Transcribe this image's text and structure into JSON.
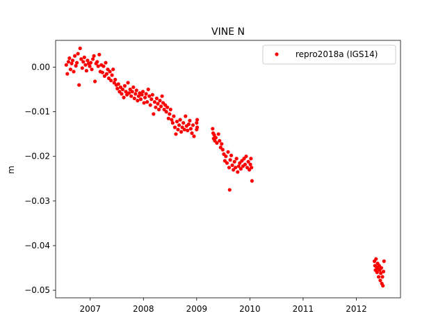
{
  "chart_data": {
    "type": "scatter",
    "title": "VINE N",
    "xlabel": "",
    "ylabel": "m",
    "xlim": [
      2006.35,
      2012.83
    ],
    "ylim": [
      -0.0517,
      0.006
    ],
    "x_ticks": [
      2007,
      2008,
      2009,
      2010,
      2011,
      2012
    ],
    "x_tick_labels": [
      "2007",
      "2008",
      "2009",
      "2010",
      "2011",
      "2012"
    ],
    "y_ticks": [
      0.0,
      -0.01,
      -0.02,
      -0.03,
      -0.04,
      -0.05
    ],
    "y_tick_labels": [
      "0.00",
      "−0.01",
      "−0.02",
      "−0.03",
      "−0.04",
      "−0.05"
    ],
    "grid": false,
    "legend_position": "top-right",
    "marker_color": "#ff0000",
    "series": [
      {
        "name": "repro2018a (IGS14)",
        "color": "#ff0000",
        "points": [
          [
            2006.55,
            0.0005
          ],
          [
            2006.57,
            -0.0015
          ],
          [
            2006.59,
            0.0012
          ],
          [
            2006.61,
            0.002
          ],
          [
            2006.63,
            -0.0005
          ],
          [
            2006.65,
            0.0008
          ],
          [
            2006.67,
            0.0015
          ],
          [
            2006.69,
            -0.001
          ],
          [
            2006.71,
            0.0025
          ],
          [
            2006.73,
            0.0003
          ],
          [
            2006.75,
            0.001
          ],
          [
            2006.77,
            0.003
          ],
          [
            2006.79,
            -0.004
          ],
          [
            2006.81,
            0.0042
          ],
          [
            2006.83,
            0.0018
          ],
          [
            2006.85,
            -0.0002
          ],
          [
            2006.87,
            0.0012
          ],
          [
            2006.89,
            0.0022
          ],
          [
            2006.91,
            0.0005
          ],
          [
            2006.93,
            -0.0008
          ],
          [
            2006.95,
            0.0015
          ],
          [
            2006.97,
            0.0008
          ],
          [
            2006.99,
            0.0002
          ],
          [
            2007.01,
            0.001
          ],
          [
            2007.03,
            -0.0005
          ],
          [
            2007.05,
            0.0018
          ],
          [
            2007.07,
            0.0025
          ],
          [
            2007.09,
            -0.0032
          ],
          [
            2007.11,
            0.0008
          ],
          [
            2007.13,
            0.0012
          ],
          [
            2007.15,
            0.0002
          ],
          [
            2007.17,
            0.0028
          ],
          [
            2007.19,
            -0.001
          ],
          [
            2007.21,
            0.0005
          ],
          [
            2007.23,
            -0.0012
          ],
          [
            2007.25,
            0.0002
          ],
          [
            2007.27,
            -0.002
          ],
          [
            2007.29,
            0.001
          ],
          [
            2007.31,
            -0.0015
          ],
          [
            2007.33,
            -0.0005
          ],
          [
            2007.35,
            -0.0025
          ],
          [
            2007.37,
            -0.001
          ],
          [
            2007.39,
            -0.003
          ],
          [
            2007.41,
            -0.0018
          ],
          [
            2007.43,
            -0.0005
          ],
          [
            2007.45,
            -0.0035
          ],
          [
            2007.47,
            -0.0028
          ],
          [
            2007.49,
            -0.004
          ],
          [
            2007.51,
            -0.0048
          ],
          [
            2007.53,
            -0.0038
          ],
          [
            2007.55,
            -0.0055
          ],
          [
            2007.57,
            -0.0045
          ],
          [
            2007.59,
            -0.006
          ],
          [
            2007.61,
            -0.005
          ],
          [
            2007.63,
            -0.0068
          ],
          [
            2007.65,
            -0.0042
          ],
          [
            2007.67,
            -0.0055
          ],
          [
            2007.69,
            -0.0062
          ],
          [
            2007.71,
            -0.0035
          ],
          [
            2007.73,
            -0.0058
          ],
          [
            2007.75,
            -0.005
          ],
          [
            2007.77,
            -0.0065
          ],
          [
            2007.79,
            -0.0055
          ],
          [
            2007.81,
            -0.0045
          ],
          [
            2007.83,
            -0.007
          ],
          [
            2007.85,
            -0.006
          ],
          [
            2007.87,
            -0.0052
          ],
          [
            2007.89,
            -0.0075
          ],
          [
            2007.91,
            -0.0065
          ],
          [
            2007.93,
            -0.0058
          ],
          [
            2007.95,
            -0.0072
          ],
          [
            2007.97,
            -0.0062
          ],
          [
            2007.99,
            -0.0055
          ],
          [
            2008.01,
            -0.008
          ],
          [
            2008.03,
            -0.0068
          ],
          [
            2008.05,
            -0.006
          ],
          [
            2008.07,
            -0.0078
          ],
          [
            2008.09,
            -0.005
          ],
          [
            2008.11,
            -0.0065
          ],
          [
            2008.13,
            -0.0085
          ],
          [
            2008.15,
            -0.0072
          ],
          [
            2008.17,
            -0.0062
          ],
          [
            2008.19,
            -0.0105
          ],
          [
            2008.21,
            -0.0078
          ],
          [
            2008.23,
            -0.009
          ],
          [
            2008.25,
            -0.007
          ],
          [
            2008.27,
            -0.0082
          ],
          [
            2008.29,
            -0.0095
          ],
          [
            2008.31,
            -0.0075
          ],
          [
            2008.33,
            -0.0088
          ],
          [
            2008.35,
            -0.0065
          ],
          [
            2008.37,
            -0.008
          ],
          [
            2008.39,
            -0.0095
          ],
          [
            2008.41,
            -0.0085
          ],
          [
            2008.43,
            -0.01
          ],
          [
            2008.45,
            -0.009
          ],
          [
            2008.47,
            -0.0115
          ],
          [
            2008.49,
            -0.0105
          ],
          [
            2008.51,
            -0.0095
          ],
          [
            2008.53,
            -0.0118
          ],
          [
            2008.55,
            -0.0125
          ],
          [
            2008.57,
            -0.011
          ],
          [
            2008.59,
            -0.0135
          ],
          [
            2008.61,
            -0.015
          ],
          [
            2008.63,
            -0.0122
          ],
          [
            2008.65,
            -0.014
          ],
          [
            2008.67,
            -0.013
          ],
          [
            2008.69,
            -0.0118
          ],
          [
            2008.71,
            -0.0145
          ],
          [
            2008.73,
            -0.0135
          ],
          [
            2008.75,
            -0.0125
          ],
          [
            2008.77,
            -0.014
          ],
          [
            2008.79,
            -0.011
          ],
          [
            2008.81,
            -0.0132
          ],
          [
            2008.83,
            -0.0142
          ],
          [
            2008.85,
            -0.0128
          ],
          [
            2008.87,
            -0.012
          ],
          [
            2008.89,
            -0.0138
          ],
          [
            2008.91,
            -0.0148
          ],
          [
            2008.93,
            -0.013
          ],
          [
            2008.95,
            -0.0155
          ],
          [
            2009.0,
            -0.0125
          ],
          [
            2009.0,
            -0.014
          ],
          [
            2009.01,
            -0.0135
          ],
          [
            2009.01,
            -0.0118
          ],
          [
            2009.3,
            -0.0138
          ],
          [
            2009.31,
            -0.0148
          ],
          [
            2009.32,
            -0.016
          ],
          [
            2009.33,
            -0.0152
          ],
          [
            2009.34,
            -0.0165
          ],
          [
            2009.36,
            -0.0158
          ],
          [
            2009.38,
            -0.017
          ],
          [
            2009.41,
            -0.015
          ],
          [
            2009.43,
            -0.0165
          ],
          [
            2009.45,
            -0.018
          ],
          [
            2009.47,
            -0.0172
          ],
          [
            2009.49,
            -0.0185
          ],
          [
            2009.51,
            -0.0195
          ],
          [
            2009.53,
            -0.021
          ],
          [
            2009.55,
            -0.02
          ],
          [
            2009.57,
            -0.0215
          ],
          [
            2009.59,
            -0.019
          ],
          [
            2009.61,
            -0.0225
          ],
          [
            2009.62,
            -0.0275
          ],
          [
            2009.63,
            -0.0208
          ],
          [
            2009.65,
            -0.0198
          ],
          [
            2009.67,
            -0.022
          ],
          [
            2009.69,
            -0.023
          ],
          [
            2009.71,
            -0.0212
          ],
          [
            2009.73,
            -0.0225
          ],
          [
            2009.75,
            -0.0205
          ],
          [
            2009.77,
            -0.0235
          ],
          [
            2009.79,
            -0.0222
          ],
          [
            2009.81,
            -0.0215
          ],
          [
            2009.83,
            -0.0228
          ],
          [
            2009.85,
            -0.021
          ],
          [
            2009.87,
            -0.0222
          ],
          [
            2009.89,
            -0.0205
          ],
          [
            2009.91,
            -0.0218
          ],
          [
            2009.93,
            -0.02
          ],
          [
            2009.95,
            -0.0225
          ],
          [
            2009.97,
            -0.0212
          ],
          [
            2009.99,
            -0.023
          ],
          [
            2010.01,
            -0.0218
          ],
          [
            2010.02,
            -0.0205
          ],
          [
            2010.03,
            -0.0225
          ],
          [
            2010.04,
            -0.0255
          ],
          [
            2012.34,
            -0.0435
          ],
          [
            2012.35,
            -0.0445
          ],
          [
            2012.36,
            -0.0455
          ],
          [
            2012.37,
            -0.043
          ],
          [
            2012.38,
            -0.0448
          ],
          [
            2012.39,
            -0.046
          ],
          [
            2012.4,
            -0.044
          ],
          [
            2012.41,
            -0.0452
          ],
          [
            2012.42,
            -0.047
          ],
          [
            2012.43,
            -0.0445
          ],
          [
            2012.44,
            -0.0455
          ],
          [
            2012.45,
            -0.0478
          ],
          [
            2012.46,
            -0.0462
          ],
          [
            2012.47,
            -0.045
          ],
          [
            2012.48,
            -0.0485
          ],
          [
            2012.49,
            -0.047
          ],
          [
            2012.5,
            -0.049
          ],
          [
            2012.51,
            -0.0458
          ],
          [
            2012.52,
            -0.0435
          ]
        ]
      }
    ]
  }
}
